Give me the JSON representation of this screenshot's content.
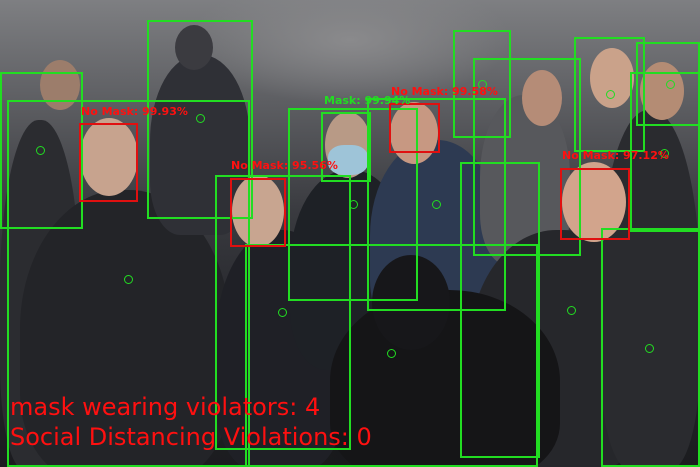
{
  "detection_labels": [
    {
      "text": "No Mask: 99.93%",
      "color": "red"
    },
    {
      "text": "No Mask: 95.56%",
      "color": "red"
    },
    {
      "text": "Mask: 99.94%",
      "color": "green"
    },
    {
      "text": "No Mask: 99.58%",
      "color": "red"
    },
    {
      "text": "No Mask: 97.12%",
      "color": "red"
    }
  ],
  "summary": {
    "mask_violators": "mask wearing violators: 4",
    "social_distancing": "Social Distancing Violations: 0"
  },
  "colors": {
    "violation": "#ff1010",
    "compliant": "#22dd22"
  }
}
